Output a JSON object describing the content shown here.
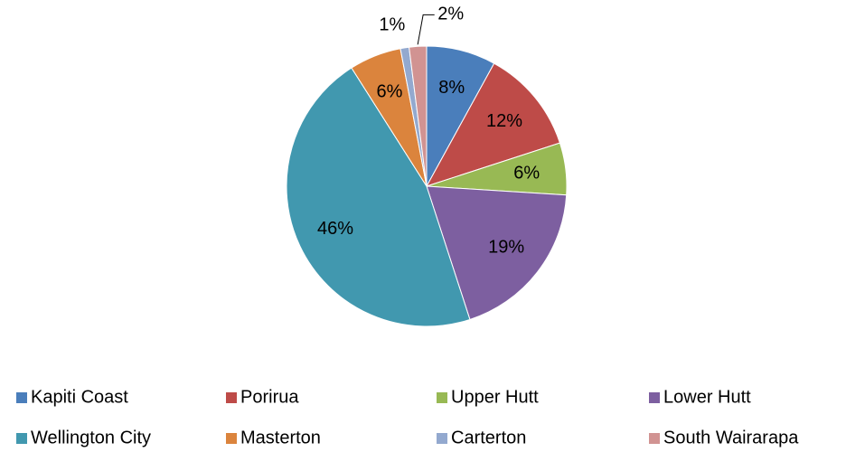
{
  "chart_data": {
    "type": "pie",
    "categories": [
      "Kapiti Coast",
      "Porirua",
      "Upper Hutt",
      "Lower Hutt",
      "Wellington City",
      "Masterton",
      "Carterton",
      "South Wairarapa"
    ],
    "values": [
      8,
      12,
      6,
      19,
      46,
      6,
      1,
      2
    ],
    "value_labels": [
      "8%",
      "12%",
      "6%",
      "19%",
      "46%",
      "6%",
      "1%",
      "2%"
    ],
    "colors": [
      "#4a7ebb",
      "#be4b48",
      "#98b954",
      "#7d5fa0",
      "#4198af",
      "#db843d",
      "#93a9cf",
      "#d19392"
    ],
    "legend": "bottom"
  }
}
